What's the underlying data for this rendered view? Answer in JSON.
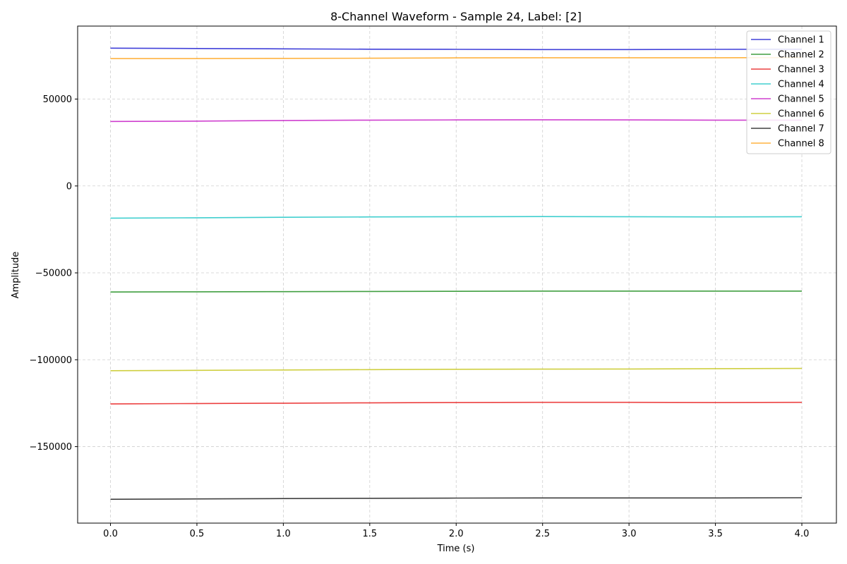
{
  "chart_data": {
    "type": "line",
    "title": "8-Channel Waveform - Sample 24, Label: [2]",
    "xlabel": "Time (s)",
    "ylabel": "Amplitude",
    "xlim": [
      -0.19,
      4.2
    ],
    "ylim": [
      -194000,
      92000
    ],
    "x_ticks": [
      0.0,
      0.5,
      1.0,
      1.5,
      2.0,
      2.5,
      3.0,
      3.5,
      4.0
    ],
    "x_tick_labels": [
      "0.0",
      "0.5",
      "1.0",
      "1.5",
      "2.0",
      "2.5",
      "3.0",
      "3.5",
      "4.0"
    ],
    "y_ticks": [
      50000,
      0,
      -50000,
      -100000,
      -150000
    ],
    "y_tick_labels": [
      "50000",
      "0",
      "−50000",
      "−100000",
      "−150000"
    ],
    "grid": true,
    "legend_position": "top-right",
    "x": [
      0.0,
      0.5,
      1.0,
      1.5,
      2.0,
      2.5,
      3.0,
      3.5,
      4.0
    ],
    "series": [
      {
        "name": "Channel 1",
        "color": "#0000cc",
        "values": [
          79300,
          79100,
          78900,
          78700,
          78600,
          78500,
          78500,
          78600,
          78700
        ]
      },
      {
        "name": "Channel 2",
        "color": "#007f00",
        "values": [
          -61000,
          -60900,
          -60800,
          -60700,
          -60600,
          -60500,
          -60500,
          -60500,
          -60500
        ]
      },
      {
        "name": "Channel 3",
        "color": "#e60000",
        "values": [
          -125400,
          -125200,
          -125000,
          -124800,
          -124600,
          -124500,
          -124500,
          -124600,
          -124500
        ]
      },
      {
        "name": "Channel 4",
        "color": "#00bfbf",
        "values": [
          -18500,
          -18300,
          -18000,
          -17800,
          -17700,
          -17600,
          -17700,
          -17800,
          -17700
        ]
      },
      {
        "name": "Channel 5",
        "color": "#bf00bf",
        "values": [
          37100,
          37300,
          37700,
          37900,
          38000,
          38100,
          38000,
          37900,
          37900
        ]
      },
      {
        "name": "Channel 6",
        "color": "#bfbf00",
        "values": [
          -106300,
          -106100,
          -105900,
          -105700,
          -105500,
          -105400,
          -105300,
          -105100,
          -105000
        ]
      },
      {
        "name": "Channel 7",
        "color": "#000000",
        "values": [
          -180300,
          -180100,
          -179900,
          -179700,
          -179600,
          -179500,
          -179500,
          -179500,
          -179400
        ]
      },
      {
        "name": "Channel 8",
        "color": "#ff9900",
        "values": [
          73300,
          73300,
          73400,
          73500,
          73700,
          73800,
          73800,
          73800,
          73900
        ]
      }
    ]
  }
}
